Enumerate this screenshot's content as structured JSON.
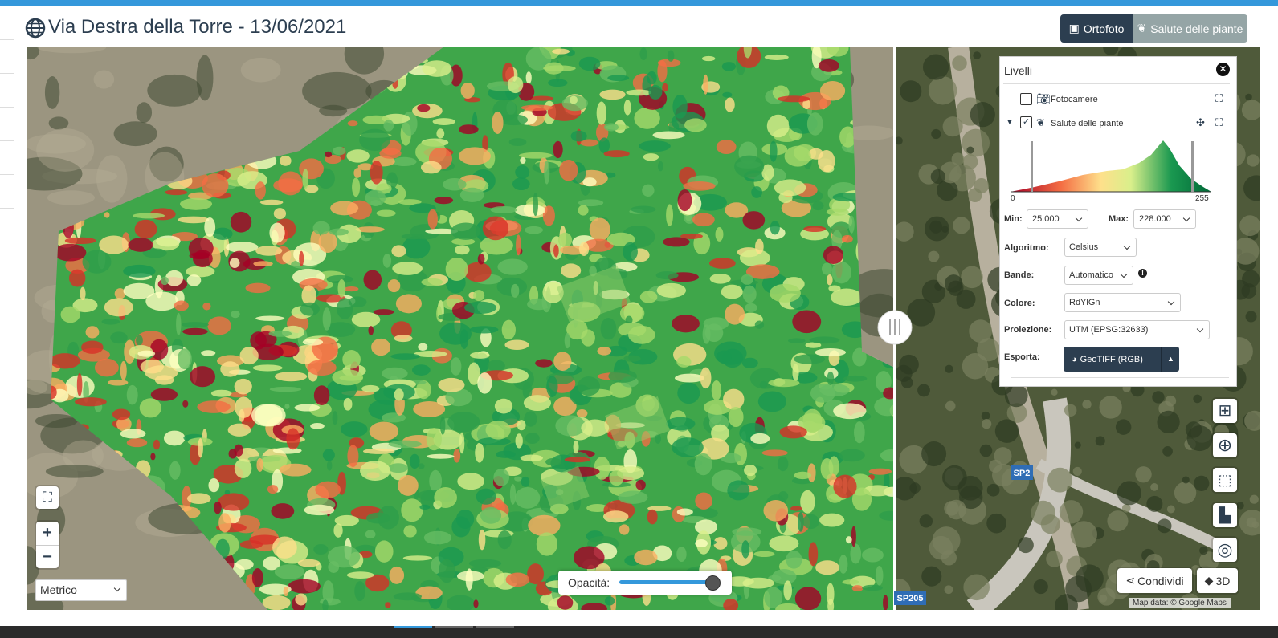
{
  "header": {
    "title": "Via Destra della Torre - 13/06/2021",
    "buttons": [
      "Ortofoto",
      "Salute delle piante"
    ]
  },
  "layers_panel": {
    "title": "Livelli",
    "layers": [
      "Fotocamere",
      "Salute delle piante"
    ],
    "histogram": {
      "min": 0,
      "max": 255
    },
    "range": {
      "min_label": "Min:",
      "min_value": "25.000",
      "max_label": "Max:",
      "max_value": "228.000"
    },
    "fields": [
      {
        "label": "Algoritmo:",
        "value": "Celsius"
      },
      {
        "label": "Bande:",
        "value": "Automatico"
      },
      {
        "label": "Colore:",
        "value": "RdYlGn"
      },
      {
        "label": "Proiezione:",
        "value": "UTM (EPSG:32633)"
      },
      {
        "label": "Esporta:",
        "value": "GeoTIFF (RGB)"
      }
    ]
  },
  "map": {
    "road_labels": [
      "SP2",
      "SP205"
    ],
    "attribution": "Map data: © Google Maps",
    "opacity_label": "Opacità:",
    "units": "Metrico",
    "zoom": [
      "+",
      "−"
    ],
    "buttons": [
      "Condividi",
      "3D"
    ]
  }
}
